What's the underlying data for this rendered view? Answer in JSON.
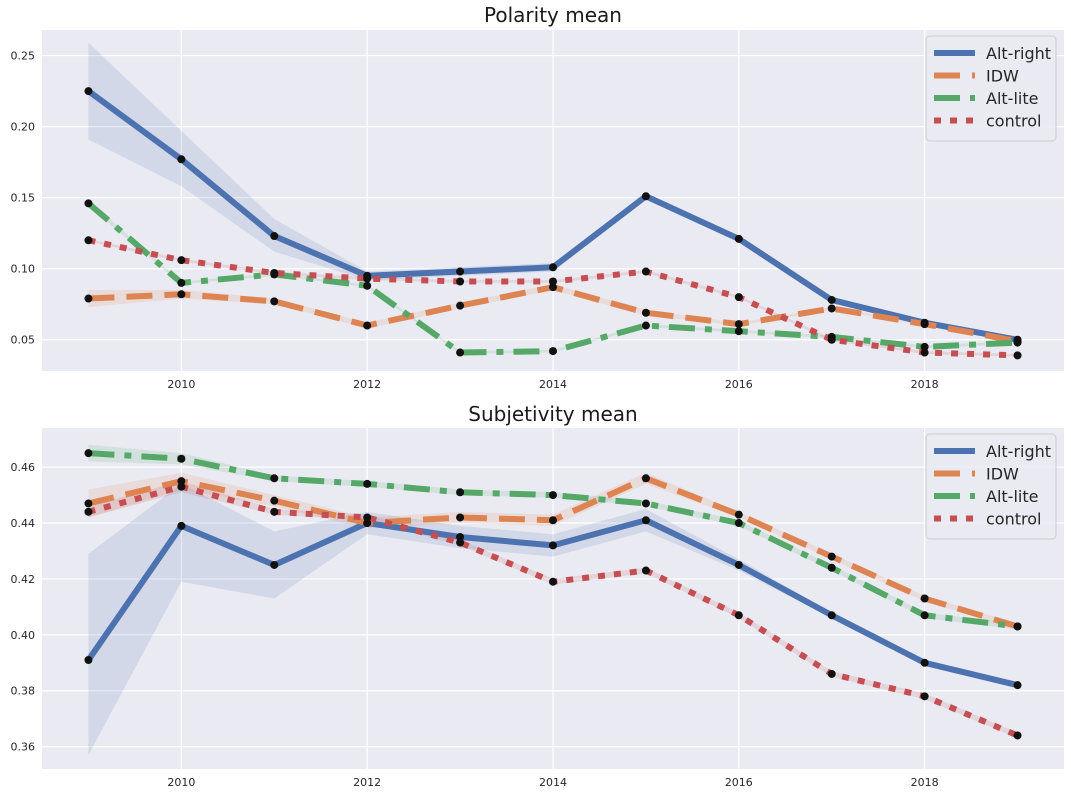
{
  "chart_data": [
    {
      "type": "line",
      "title": "Polarity mean",
      "xlabel": "",
      "ylabel": "",
      "xlim": [
        2008.5,
        2019.5
      ],
      "ylim": [
        0.028,
        0.268
      ],
      "xticks": [
        2010,
        2012,
        2014,
        2016,
        2018
      ],
      "xtick_labels": [
        "2010",
        "2012",
        "2014",
        "2016",
        "2018"
      ],
      "yticks": [
        0.05,
        0.1,
        0.15,
        0.2,
        0.25
      ],
      "ytick_labels": [
        "0.05",
        "0.10",
        "0.15",
        "0.20",
        "0.25"
      ],
      "grid": true,
      "legend_position": "top-right",
      "x": [
        2009,
        2010,
        2011,
        2012,
        2013,
        2014,
        2015,
        2016,
        2017,
        2018,
        2019
      ],
      "series": [
        {
          "name": "Alt-right",
          "color": "#4c72b0",
          "style": "solid",
          "values": [
            0.225,
            0.177,
            0.123,
            0.095,
            0.098,
            0.101,
            0.151,
            0.121,
            0.078,
            0.062,
            0.05
          ],
          "band_low": [
            0.191,
            0.158,
            0.112,
            0.092,
            0.095,
            0.098,
            0.149,
            0.119,
            0.077,
            0.061,
            0.049
          ],
          "band_high": [
            0.259,
            0.197,
            0.135,
            0.098,
            0.101,
            0.104,
            0.153,
            0.123,
            0.079,
            0.063,
            0.051
          ]
        },
        {
          "name": "IDW",
          "color": "#dd8452",
          "style": "dashed",
          "values": [
            0.079,
            0.082,
            0.077,
            0.06,
            0.074,
            0.087,
            0.069,
            0.061,
            0.072,
            0.061,
            0.049
          ],
          "band_low": [
            0.073,
            0.079,
            0.075,
            0.058,
            0.072,
            0.085,
            0.067,
            0.06,
            0.071,
            0.06,
            0.048
          ],
          "band_high": [
            0.085,
            0.085,
            0.079,
            0.062,
            0.076,
            0.089,
            0.071,
            0.062,
            0.073,
            0.062,
            0.05
          ]
        },
        {
          "name": "Alt-lite",
          "color": "#55a868",
          "style": "dashdot",
          "values": [
            0.146,
            0.09,
            0.096,
            0.088,
            0.041,
            0.042,
            0.06,
            0.056,
            0.052,
            0.045,
            0.048
          ],
          "band_low": [
            0.144,
            0.089,
            0.095,
            0.087,
            0.04,
            0.041,
            0.059,
            0.055,
            0.051,
            0.044,
            0.047
          ],
          "band_high": [
            0.148,
            0.091,
            0.097,
            0.089,
            0.042,
            0.043,
            0.061,
            0.057,
            0.053,
            0.046,
            0.049
          ]
        },
        {
          "name": "control",
          "color": "#c44e52",
          "style": "dotted",
          "values": [
            0.12,
            0.106,
            0.097,
            0.093,
            0.091,
            0.091,
            0.098,
            0.08,
            0.05,
            0.041,
            0.039
          ],
          "band_low": [
            0.119,
            0.105,
            0.096,
            0.092,
            0.09,
            0.09,
            0.097,
            0.079,
            0.049,
            0.04,
            0.038
          ],
          "band_high": [
            0.121,
            0.107,
            0.098,
            0.094,
            0.092,
            0.092,
            0.099,
            0.081,
            0.051,
            0.042,
            0.04
          ]
        }
      ]
    },
    {
      "type": "line",
      "title": "Subjetivity mean",
      "xlabel": "",
      "ylabel": "",
      "xlim": [
        2008.5,
        2019.5
      ],
      "ylim": [
        0.352,
        0.474
      ],
      "xticks": [
        2010,
        2012,
        2014,
        2016,
        2018
      ],
      "xtick_labels": [
        "2010",
        "2012",
        "2014",
        "2016",
        "2018"
      ],
      "yticks": [
        0.36,
        0.38,
        0.4,
        0.42,
        0.44,
        0.46
      ],
      "ytick_labels": [
        "0.36",
        "0.38",
        "0.40",
        "0.42",
        "0.44",
        "0.46"
      ],
      "grid": true,
      "legend_position": "top-right",
      "x": [
        2009,
        2010,
        2011,
        2012,
        2013,
        2014,
        2015,
        2016,
        2017,
        2018,
        2019
      ],
      "series": [
        {
          "name": "Alt-right",
          "color": "#4c72b0",
          "style": "solid",
          "values": [
            0.391,
            0.439,
            0.425,
            0.44,
            0.435,
            0.432,
            0.441,
            0.425,
            0.407,
            0.39,
            0.382
          ],
          "band_low": [
            0.357,
            0.419,
            0.413,
            0.436,
            0.431,
            0.428,
            0.437,
            0.423,
            0.406,
            0.389,
            0.381
          ],
          "band_high": [
            0.429,
            0.454,
            0.437,
            0.444,
            0.439,
            0.436,
            0.445,
            0.427,
            0.408,
            0.391,
            0.383
          ]
        },
        {
          "name": "IDW",
          "color": "#dd8452",
          "style": "dashed",
          "values": [
            0.447,
            0.455,
            0.448,
            0.44,
            0.442,
            0.441,
            0.456,
            0.443,
            0.428,
            0.413,
            0.403
          ],
          "band_low": [
            0.442,
            0.452,
            0.446,
            0.438,
            0.44,
            0.439,
            0.454,
            0.442,
            0.427,
            0.412,
            0.402
          ],
          "band_high": [
            0.452,
            0.458,
            0.45,
            0.442,
            0.444,
            0.443,
            0.458,
            0.444,
            0.429,
            0.414,
            0.404
          ]
        },
        {
          "name": "Alt-lite",
          "color": "#55a868",
          "style": "dashdot",
          "values": [
            0.465,
            0.463,
            0.456,
            0.454,
            0.451,
            0.45,
            0.447,
            0.44,
            0.424,
            0.407,
            0.403
          ],
          "band_low": [
            0.462,
            0.461,
            0.455,
            0.453,
            0.45,
            0.449,
            0.446,
            0.439,
            0.423,
            0.406,
            0.402
          ],
          "band_high": [
            0.468,
            0.465,
            0.457,
            0.455,
            0.452,
            0.451,
            0.448,
            0.441,
            0.425,
            0.408,
            0.404
          ]
        },
        {
          "name": "control",
          "color": "#c44e52",
          "style": "dotted",
          "values": [
            0.444,
            0.453,
            0.444,
            0.442,
            0.433,
            0.419,
            0.423,
            0.407,
            0.386,
            0.378,
            0.364
          ],
          "band_low": [
            0.442,
            0.451,
            0.443,
            0.441,
            0.432,
            0.418,
            0.422,
            0.406,
            0.385,
            0.377,
            0.363
          ],
          "band_high": [
            0.446,
            0.455,
            0.445,
            0.443,
            0.434,
            0.42,
            0.424,
            0.408,
            0.387,
            0.379,
            0.365
          ]
        }
      ]
    }
  ]
}
